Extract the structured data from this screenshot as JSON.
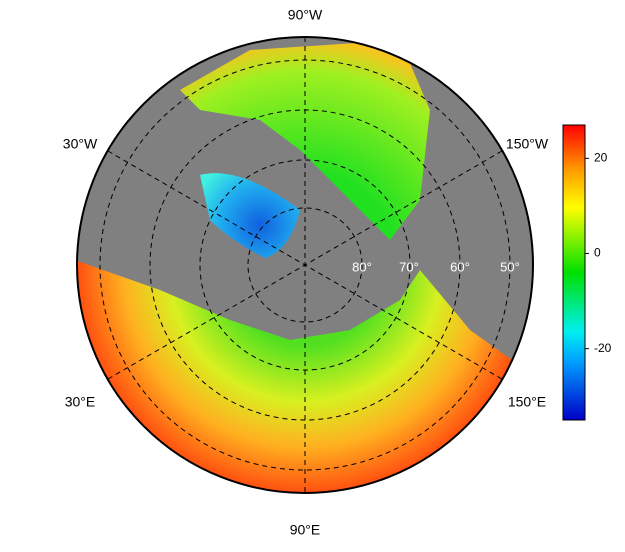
{
  "map": {
    "lon_labels": [
      "90°W",
      "30°W",
      "150°W",
      "30°E",
      "150°E",
      "90°E"
    ],
    "lat_labels": [
      "80°",
      "70°",
      "60°",
      "50°"
    ],
    "colorbar": {
      "lim": [
        -35,
        27
      ],
      "ticks": [
        -20,
        0,
        20
      ]
    }
  }
}
